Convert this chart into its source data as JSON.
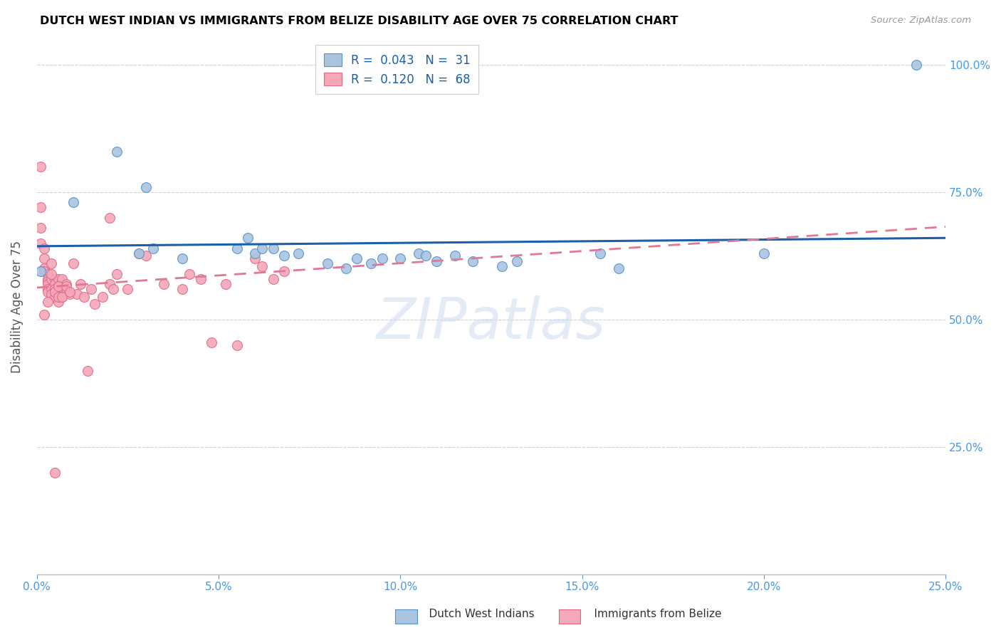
{
  "title": "DUTCH WEST INDIAN VS IMMIGRANTS FROM BELIZE DISABILITY AGE OVER 75 CORRELATION CHART",
  "source": "Source: ZipAtlas.com",
  "ylabel": "Disability Age Over 75",
  "xmin": 0.0,
  "xmax": 0.25,
  "ymin": 0.0,
  "ymax": 1.05,
  "xtick_labels": [
    "0.0%",
    "",
    "",
    "",
    "",
    "",
    "",
    "",
    "",
    "",
    "5.0%",
    "",
    "",
    "",
    "",
    "",
    "",
    "",
    "",
    "",
    "10.0%",
    "",
    "",
    "",
    "",
    "",
    "",
    "",
    "",
    "",
    "15.0%",
    "",
    "",
    "",
    "",
    "",
    "",
    "",
    "",
    "",
    "20.0%",
    "",
    "",
    "",
    "",
    "",
    "",
    "",
    "",
    "",
    "25.0%"
  ],
  "xtick_vals": [
    0.0,
    0.005,
    0.01,
    0.015,
    0.02,
    0.025,
    0.03,
    0.035,
    0.04,
    0.045,
    0.05,
    0.055,
    0.06,
    0.065,
    0.07,
    0.075,
    0.08,
    0.085,
    0.09,
    0.095,
    0.1,
    0.105,
    0.11,
    0.115,
    0.12,
    0.125,
    0.13,
    0.135,
    0.14,
    0.145,
    0.15,
    0.155,
    0.16,
    0.165,
    0.17,
    0.175,
    0.18,
    0.185,
    0.19,
    0.195,
    0.2,
    0.205,
    0.21,
    0.215,
    0.22,
    0.225,
    0.23,
    0.235,
    0.24,
    0.245,
    0.25
  ],
  "ytick_labels": [
    "25.0%",
    "50.0%",
    "75.0%",
    "100.0%"
  ],
  "ytick_vals": [
    0.25,
    0.5,
    0.75,
    1.0
  ],
  "blue_fill": "#aac4e0",
  "blue_edge": "#5590c8",
  "pink_fill": "#f4a8b8",
  "pink_edge": "#e06888",
  "blue_line_color": "#1a5fa8",
  "pink_line_color": "#e07898",
  "tick_color": "#4499ee",
  "blue_R": 0.043,
  "pink_R": 0.12,
  "watermark": "ZIPatlas",
  "blue_x": [
    0.001,
    0.01,
    0.022,
    0.03,
    0.028,
    0.032,
    0.04,
    0.055,
    0.058,
    0.06,
    0.062,
    0.065,
    0.068,
    0.072,
    0.08,
    0.085,
    0.088,
    0.092,
    0.095,
    0.1,
    0.105,
    0.107,
    0.11,
    0.115,
    0.12,
    0.128,
    0.132,
    0.155,
    0.16,
    0.2,
    0.242
  ],
  "blue_y": [
    0.595,
    0.73,
    0.83,
    0.76,
    0.63,
    0.64,
    0.62,
    0.64,
    0.66,
    0.63,
    0.64,
    0.64,
    0.625,
    0.63,
    0.61,
    0.6,
    0.62,
    0.61,
    0.62,
    0.62,
    0.63,
    0.625,
    0.615,
    0.625,
    0.615,
    0.605,
    0.615,
    0.63,
    0.6,
    0.63,
    1.0
  ],
  "pink_x": [
    0.001,
    0.001,
    0.001,
    0.001,
    0.002,
    0.002,
    0.002,
    0.002,
    0.003,
    0.003,
    0.003,
    0.003,
    0.003,
    0.003,
    0.004,
    0.004,
    0.004,
    0.004,
    0.005,
    0.005,
    0.005,
    0.005,
    0.006,
    0.006,
    0.006,
    0.006,
    0.007,
    0.007,
    0.007,
    0.008,
    0.008,
    0.009,
    0.01,
    0.011,
    0.012,
    0.013,
    0.015,
    0.016,
    0.018,
    0.02,
    0.021,
    0.022,
    0.028,
    0.03,
    0.035,
    0.04,
    0.042,
    0.045,
    0.048,
    0.052,
    0.055,
    0.06,
    0.062,
    0.065,
    0.068,
    0.005,
    0.014,
    0.002,
    0.003,
    0.004,
    0.005,
    0.006,
    0.006,
    0.007,
    0.008,
    0.009,
    0.02,
    0.025
  ],
  "pink_y": [
    0.8,
    0.72,
    0.68,
    0.65,
    0.64,
    0.62,
    0.6,
    0.595,
    0.59,
    0.58,
    0.575,
    0.57,
    0.56,
    0.555,
    0.61,
    0.58,
    0.56,
    0.55,
    0.58,
    0.57,
    0.56,
    0.545,
    0.58,
    0.565,
    0.55,
    0.535,
    0.58,
    0.56,
    0.545,
    0.57,
    0.56,
    0.55,
    0.61,
    0.55,
    0.57,
    0.545,
    0.56,
    0.53,
    0.545,
    0.57,
    0.56,
    0.59,
    0.63,
    0.625,
    0.57,
    0.56,
    0.59,
    0.58,
    0.455,
    0.57,
    0.45,
    0.62,
    0.605,
    0.58,
    0.595,
    0.2,
    0.4,
    0.51,
    0.535,
    0.59,
    0.555,
    0.545,
    0.565,
    0.545,
    0.565,
    0.555,
    0.7,
    0.56
  ]
}
